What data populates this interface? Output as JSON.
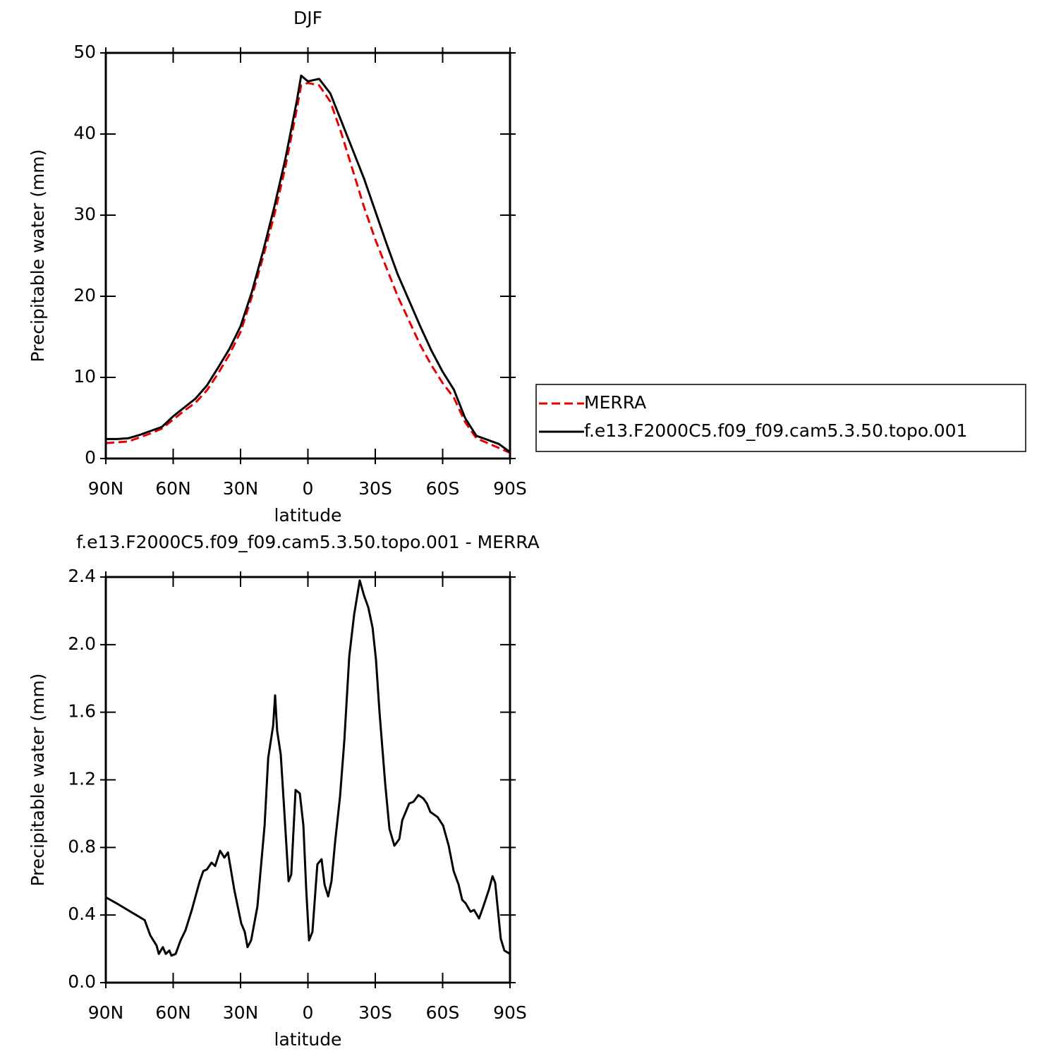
{
  "chart_data": [
    {
      "type": "line",
      "title": "DJF",
      "xlabel": "latitude",
      "ylabel": "Precipitable water (mm)",
      "xlim": [
        90,
        -90
      ],
      "xticks": [
        {
          "value": 90,
          "label": "90N"
        },
        {
          "value": 60,
          "label": "60N"
        },
        {
          "value": 30,
          "label": "30N"
        },
        0,
        {
          "value": -30,
          "label": "30S"
        },
        {
          "value": -60,
          "label": "60S"
        },
        {
          "value": -90,
          "label": "90S"
        }
      ],
      "ylim": [
        0,
        50
      ],
      "yticks": [
        0,
        10,
        20,
        30,
        40,
        50
      ],
      "x": [
        90,
        85,
        80,
        75,
        70,
        65,
        60,
        55,
        50,
        45,
        40,
        35,
        30,
        25,
        20,
        15,
        10,
        5,
        3,
        0,
        -5,
        -10,
        -15,
        -20,
        -25,
        -30,
        -35,
        -40,
        -45,
        -50,
        -55,
        -60,
        -65,
        -70,
        -75,
        -80,
        -85,
        -90
      ],
      "series": [
        {
          "name": "MERRA",
          "color": "#e60000",
          "dashed": true,
          "values": [
            1.9,
            2.0,
            2.1,
            2.6,
            3.1,
            3.7,
            4.8,
            5.9,
            6.9,
            8.4,
            10.5,
            12.8,
            15.6,
            19.9,
            24.8,
            30,
            36,
            43,
            46,
            46.3,
            46,
            44,
            40,
            35.5,
            31,
            27,
            23.5,
            20,
            17,
            14,
            11.5,
            9.3,
            7.5,
            4.5,
            2.5,
            1.9,
            1.3,
            0.7
          ]
        },
        {
          "name": "f.e13.F2000C5.f09_f09.cam5.3.50.topo.001",
          "color": "#000000",
          "dashed": false,
          "values": [
            2.4,
            2.4,
            2.5,
            2.9,
            3.4,
            3.9,
            5.2,
            6.3,
            7.4,
            9.0,
            11.2,
            13.5,
            16.3,
            20.5,
            25.5,
            31,
            37,
            44,
            47.2,
            46.5,
            46.8,
            45,
            41.5,
            38,
            34.5,
            30.5,
            26.5,
            22.7,
            19.5,
            16.3,
            13.3,
            10.7,
            8.5,
            5,
            2.8,
            2.3,
            1.8,
            0.8
          ]
        }
      ]
    },
    {
      "type": "line",
      "title": "f.e13.F2000C5.f09_f09.cam5.3.50.topo.001 - MERRA",
      "xlabel": "latitude",
      "ylabel": "Precipitable water (mm)",
      "xlim": [
        90,
        -90
      ],
      "xticks": [
        {
          "value": 90,
          "label": "90N"
        },
        {
          "value": 60,
          "label": "60N"
        },
        {
          "value": 30,
          "label": "30N"
        },
        0,
        {
          "value": -30,
          "label": "30S"
        },
        {
          "value": -60,
          "label": "60S"
        },
        {
          "value": -90,
          "label": "90S"
        }
      ],
      "ylim": [
        0,
        2.4
      ],
      "yticks": [
        {
          "value": 0,
          "label": "0.0"
        },
        0.4,
        0.8,
        1.2,
        1.6,
        {
          "value": 2,
          "label": "2.0"
        },
        2.4
      ],
      "x": [
        90,
        85.3,
        79,
        75.2,
        72.7,
        70.2,
        67.4,
        66.4,
        64.6,
        63.3,
        61.7,
        60.8,
        58.9,
        56.7,
        54.5,
        51.7,
        48.2,
        46.6,
        45,
        42.9,
        41.3,
        39.1,
        37.2,
        35.6,
        32.8,
        29.7,
        28.1,
        26.9,
        25.3,
        22.5,
        19.3,
        17.7,
        15.5,
        14.6,
        13.7,
        12.1,
        10.5,
        8.6,
        7.4,
        5.5,
        3.6,
        2.0,
        0.8,
        -0.5,
        -2.0,
        -4.2,
        -6.1,
        -7.4,
        -9.0,
        -10.5,
        -12.1,
        -14.3,
        -16.2,
        -18.4,
        -20.6,
        -23.1,
        -25.0,
        -26.9,
        -28.8,
        -30.3,
        -31.9,
        -34.4,
        -36.3,
        -38.5,
        -40.7,
        -42.0,
        -45.1,
        -47.0,
        -49.2,
        -51.4,
        -53.0,
        -54.5,
        -57.7,
        -60.2,
        -62.7,
        -64.9,
        -67.1,
        -68.7,
        -70.2,
        -72.4,
        -74.0,
        -76.2,
        -78.1,
        -80.6,
        -82.2,
        -83.4,
        -85.9,
        -87.5,
        -90
      ],
      "series": [
        {
          "color": "#000000",
          "dashed": false,
          "values": [
            0.505,
            0.47,
            0.42,
            0.39,
            0.37,
            0.28,
            0.22,
            0.17,
            0.21,
            0.17,
            0.19,
            0.16,
            0.17,
            0.25,
            0.31,
            0.43,
            0.6,
            0.66,
            0.67,
            0.71,
            0.69,
            0.78,
            0.74,
            0.77,
            0.55,
            0.35,
            0.3,
            0.21,
            0.25,
            0.45,
            0.93,
            1.33,
            1.52,
            1.7,
            1.49,
            1.35,
            1.01,
            0.6,
            0.64,
            1.14,
            1.12,
            0.93,
            0.56,
            0.25,
            0.3,
            0.7,
            0.73,
            0.58,
            0.51,
            0.6,
            0.83,
            1.1,
            1.43,
            1.93,
            2.18,
            2.38,
            2.29,
            2.22,
            2.1,
            1.91,
            1.6,
            1.18,
            0.91,
            0.81,
            0.85,
            0.96,
            1.06,
            1.07,
            1.11,
            1.09,
            1.06,
            1.01,
            0.98,
            0.93,
            0.81,
            0.66,
            0.58,
            0.49,
            0.47,
            0.42,
            0.43,
            0.38,
            0.45,
            0.55,
            0.63,
            0.59,
            0.26,
            0.19,
            0.17
          ]
        }
      ]
    }
  ]
}
